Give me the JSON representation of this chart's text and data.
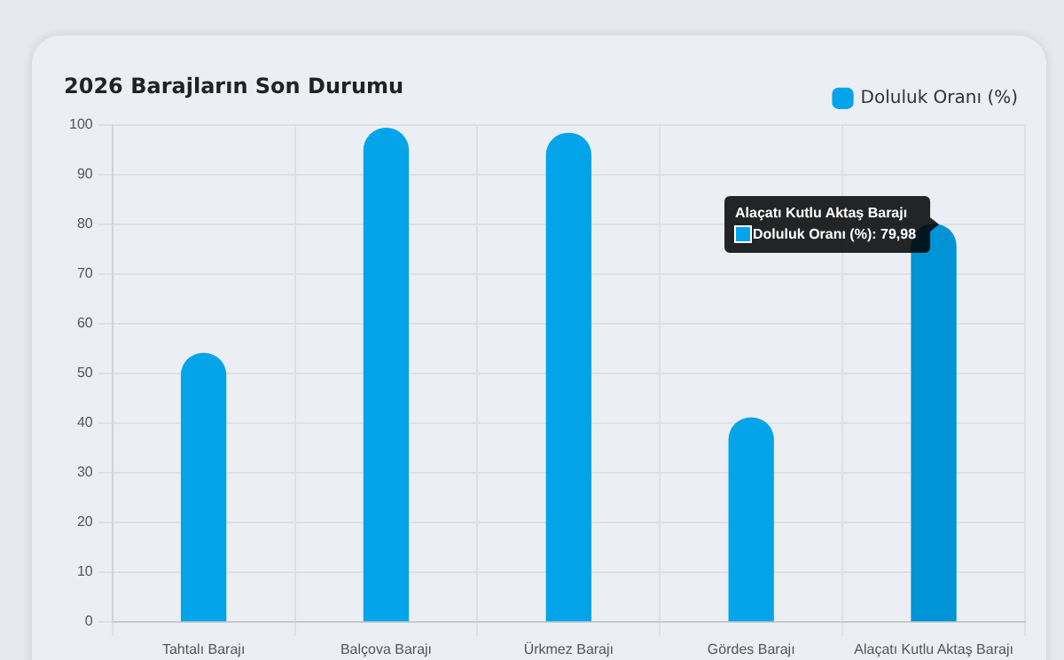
{
  "chart_data": {
    "type": "bar",
    "title": "2026 Barajların Son Durumu",
    "categories": [
      "Tahtalı Barajı",
      "Balçova Barajı",
      "Ürkmez Barajı",
      "Gördes Barajı",
      "Alaçatı Kutlu Aktaş Barajı"
    ],
    "series": [
      {
        "name": "Doluluk Oranı (%)",
        "color": "#03a4ea",
        "colors": [
          "#03a4ea",
          "#03a4ea",
          "#03a4ea",
          "#03a4ea",
          "#0093d6"
        ],
        "values": [
          54,
          99.3,
          98.3,
          41,
          79.98
        ]
      }
    ],
    "ylim": [
      0,
      100
    ],
    "yticks": [
      0,
      10,
      20,
      30,
      40,
      50,
      60,
      70,
      80,
      90,
      100
    ],
    "grid": true,
    "legend": "top right",
    "annotations": [
      {
        "text": "Alaçatı Kutlu Aktaş Barajı\nDoluluk Oranı (%): 79,98",
        "x": "Alaçatı Kutlu Aktaş Barajı",
        "y": 79.98
      }
    ]
  }
}
